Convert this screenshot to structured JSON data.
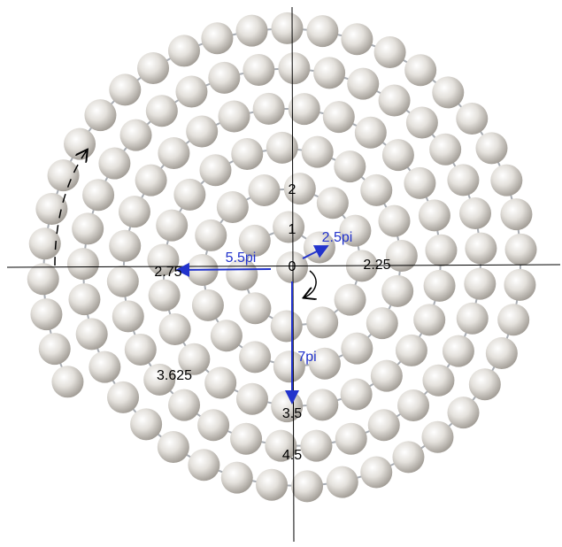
{
  "labels": {
    "ring_2": "2",
    "ring_1": "1",
    "origin": "0",
    "left": "2.75",
    "right": "2.25",
    "lower_left": "3.625",
    "below_1": "3.5",
    "below_2": "4.5"
  },
  "arrows": {
    "up_right": "2.5pi",
    "left": "5.5pi",
    "down": "7pi"
  }
}
